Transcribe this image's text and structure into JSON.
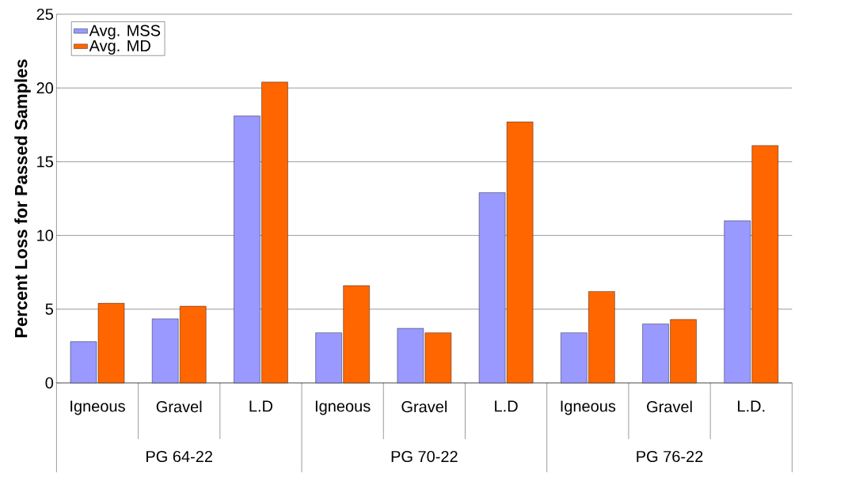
{
  "chart_data": {
    "type": "bar",
    "ylabel": "**Percent Loss for Passed Samples**",
    "categories": [
      "Igneous",
      "Gravel",
      "L.D",
      "Igneous",
      "Gravel",
      "L.D",
      "Igneous",
      "Gravel",
      "L.D."
    ],
    "annotations": [
      "PG 64-22",
      "PG 70-22",
      "PG 76-22"
    ],
    "series": [
      {
        "name": "Avg. MSS",
        "color": "#9999ff",
        "values": [
          2.8,
          4.35,
          18.1,
          3.4,
          3.7,
          12.9,
          3.4,
          4.0,
          11.0
        ]
      },
      {
        "name": "Avg. MD",
        "color": "#ff6600",
        "values": [
          5.4,
          5.2,
          20.4,
          6.6,
          3.4,
          17.7,
          6.2,
          4.3,
          16.1
        ]
      }
    ],
    "ylim": [
      0,
      25
    ],
    "yticks": [
      0,
      5,
      10,
      15,
      20,
      25
    ],
    "grid": "y",
    "legend": "top left"
  }
}
